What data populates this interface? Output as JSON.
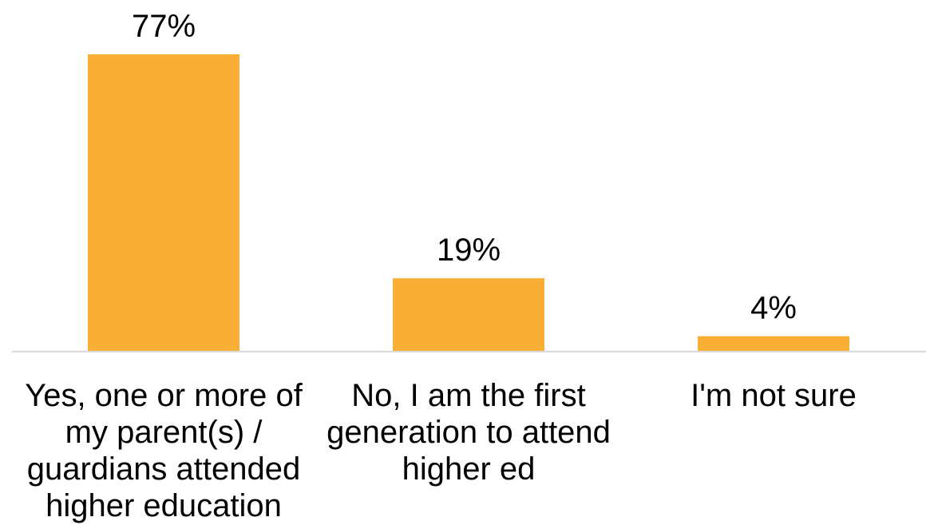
{
  "chart_data": {
    "type": "bar",
    "title": "",
    "xlabel": "",
    "ylabel": "",
    "categories": [
      [
        "Yes, one or more of",
        "my parent(s) /",
        "guardians attended",
        "higher education"
      ],
      [
        "No, I am the first",
        "generation to attend",
        "higher ed"
      ],
      [
        "I'm not sure"
      ]
    ],
    "values": [
      77,
      19,
      4
    ],
    "value_labels": [
      "77%",
      "19%",
      "4%"
    ],
    "ylim": [
      0,
      77
    ],
    "grid": false,
    "legend": "none",
    "bar_color": "#F9AE36",
    "axis_color": "#D9D9D9"
  }
}
